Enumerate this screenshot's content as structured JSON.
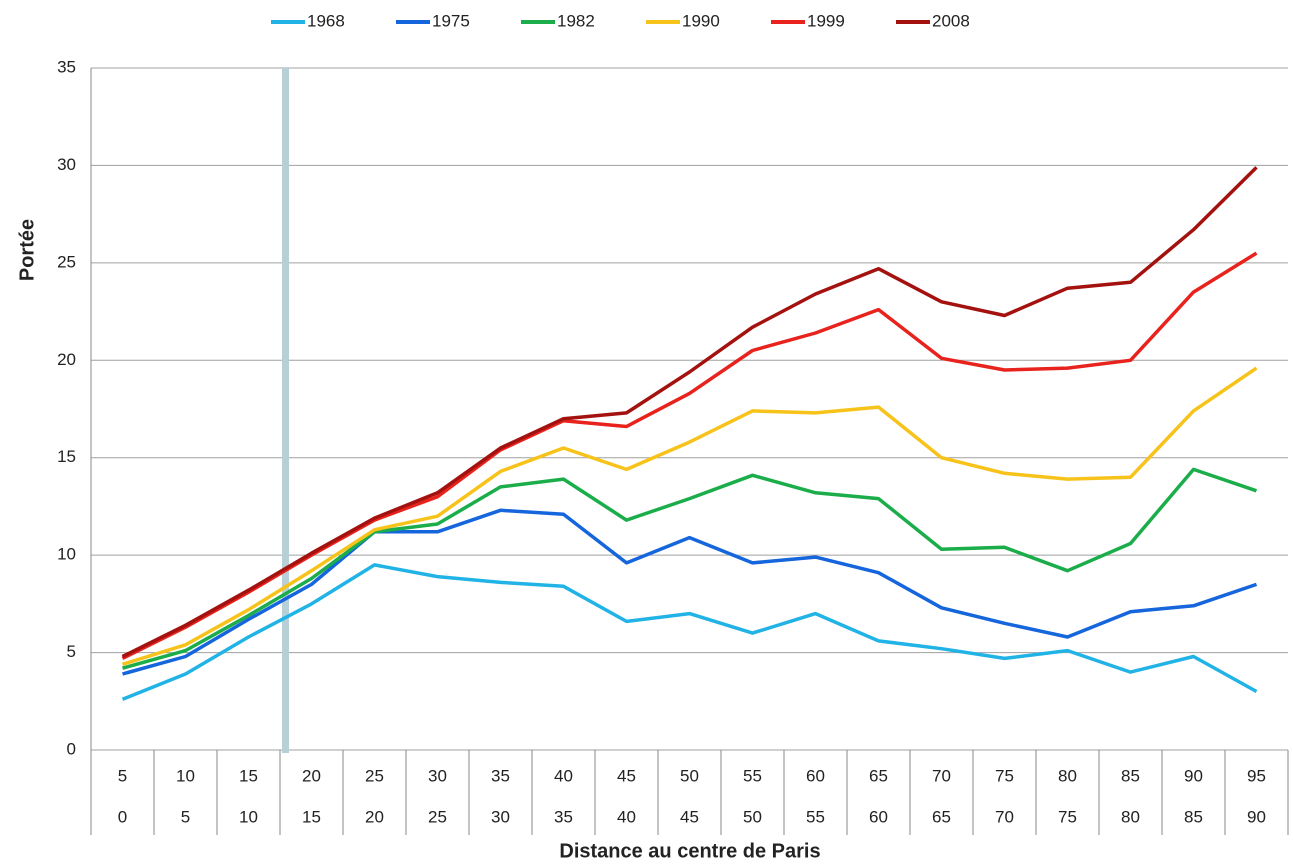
{
  "chart_data": {
    "type": "line",
    "x_title": "Distance au centre de Paris",
    "y_title": "Portée",
    "categories": [
      "5",
      "10",
      "15",
      "20",
      "25",
      "30",
      "35",
      "40",
      "45",
      "50",
      "55",
      "60",
      "65",
      "70",
      "75",
      "80",
      "85",
      "90",
      "95"
    ],
    "categories_sub": [
      "0",
      "5",
      "10",
      "15",
      "20",
      "25",
      "30",
      "35",
      "40",
      "45",
      "50",
      "55",
      "60",
      "65",
      "70",
      "75",
      "80",
      "85",
      "90"
    ],
    "ylim": [
      0,
      35
    ],
    "yticks": [
      0,
      5,
      10,
      15,
      20,
      25,
      30,
      35
    ],
    "grid": true,
    "legend": "top",
    "series": [
      {
        "name": "1968",
        "color": "#21b3e6",
        "values": [
          2.6,
          3.9,
          5.8,
          7.5,
          9.5,
          8.9,
          8.6,
          8.4,
          6.6,
          7.0,
          6.0,
          7.0,
          5.6,
          5.2,
          4.7,
          5.1,
          4.0,
          4.8,
          3.0
        ]
      },
      {
        "name": "1975",
        "color": "#1565dc",
        "values": [
          3.9,
          4.8,
          6.7,
          8.5,
          11.2,
          11.2,
          12.3,
          12.1,
          9.6,
          10.9,
          9.6,
          9.9,
          9.1,
          7.3,
          6.5,
          5.8,
          7.1,
          7.4,
          8.5
        ]
      },
      {
        "name": "1982",
        "color": "#1aad4a",
        "values": [
          4.2,
          5.1,
          6.9,
          8.8,
          11.2,
          11.6,
          13.5,
          13.9,
          11.8,
          12.9,
          14.1,
          13.2,
          12.9,
          10.3,
          10.4,
          9.2,
          10.6,
          14.4,
          13.3
        ]
      },
      {
        "name": "1990",
        "color": "#f7c31a",
        "values": [
          4.4,
          5.4,
          7.2,
          9.2,
          11.3,
          12.0,
          14.3,
          15.5,
          14.4,
          15.8,
          17.4,
          17.3,
          17.6,
          15.0,
          14.2,
          13.9,
          14.0,
          17.4,
          19.6
        ]
      },
      {
        "name": "1999",
        "color": "#e8221c",
        "values": [
          4.7,
          6.3,
          8.1,
          10.0,
          11.8,
          13.0,
          15.4,
          16.9,
          16.6,
          18.3,
          20.5,
          21.4,
          22.6,
          20.1,
          19.5,
          19.6,
          20.0,
          23.5,
          25.5
        ]
      },
      {
        "name": "2008",
        "color": "#a3120f",
        "values": [
          4.8,
          6.4,
          8.2,
          10.1,
          11.9,
          13.2,
          15.5,
          17.0,
          17.3,
          19.4,
          21.7,
          23.4,
          24.7,
          23.0,
          22.3,
          23.7,
          24.0,
          26.7,
          29.9
        ]
      }
    ]
  }
}
